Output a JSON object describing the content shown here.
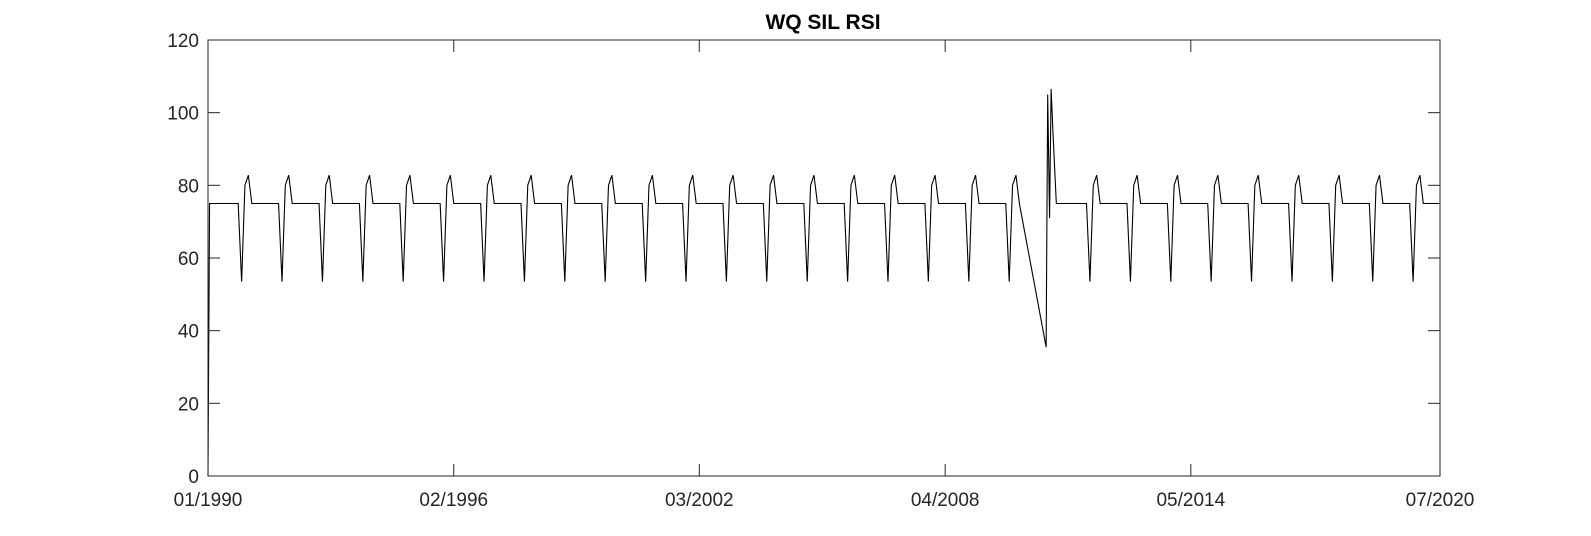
{
  "chart_data": {
    "type": "line",
    "title": "WQ SIL RSI",
    "xlabel": "",
    "ylabel": "",
    "x_axis": {
      "type": "date",
      "range": [
        "1990-01-01",
        "2020-07-01"
      ],
      "tick_dates": [
        "1990-01-01",
        "1996-02-01",
        "2002-03-01",
        "2008-04-01",
        "2014-05-01",
        "2020-07-01"
      ],
      "tick_labels": [
        "01/1990",
        "02/1996",
        "03/2002",
        "04/2008",
        "05/2014",
        "07/2020"
      ]
    },
    "y_axis": {
      "range": [
        0,
        120
      ],
      "ticks": [
        0,
        20,
        40,
        60,
        80,
        100,
        120
      ]
    },
    "grid": false,
    "line_color": "#000000",
    "series": [
      {
        "description_of_pattern": "annual cycle",
        "points": [
          [
            "1990-01-01",
            0
          ],
          [
            "1990-01-15",
            75
          ],
          [
            "1990-10-01",
            75
          ],
          [
            "1990-11-01",
            53.5
          ],
          [
            "1990-12-01",
            80
          ],
          [
            "1991-01-01",
            82.8
          ],
          [
            "1991-02-01",
            75
          ],
          [
            "1991-10-01",
            75
          ],
          [
            "1991-11-01",
            53.5
          ],
          [
            "1991-12-01",
            80
          ],
          [
            "1992-01-01",
            82.8
          ],
          [
            "1992-02-01",
            75
          ],
          [
            "1992-10-01",
            75
          ],
          [
            "1992-11-01",
            53.5
          ],
          [
            "1992-12-01",
            80
          ],
          [
            "1993-01-01",
            82.8
          ],
          [
            "1993-02-01",
            75
          ],
          [
            "1993-10-01",
            75
          ],
          [
            "1993-11-01",
            53.5
          ],
          [
            "1993-12-01",
            80
          ],
          [
            "1994-01-01",
            82.8
          ],
          [
            "1994-02-01",
            75
          ],
          [
            "1994-10-01",
            75
          ],
          [
            "1994-11-01",
            53.5
          ],
          [
            "1994-12-01",
            80
          ],
          [
            "1995-01-01",
            82.8
          ],
          [
            "1995-02-01",
            75
          ],
          [
            "1995-10-01",
            75
          ],
          [
            "1995-11-01",
            53.5
          ],
          [
            "1995-12-01",
            80
          ],
          [
            "1996-01-01",
            82.8
          ],
          [
            "1996-02-01",
            75
          ],
          [
            "1996-10-01",
            75
          ],
          [
            "1996-11-01",
            53.5
          ],
          [
            "1996-12-01",
            80
          ],
          [
            "1997-01-01",
            82.8
          ],
          [
            "1997-02-01",
            75
          ],
          [
            "1997-10-01",
            75
          ],
          [
            "1997-11-01",
            53.5
          ],
          [
            "1997-12-01",
            80
          ],
          [
            "1998-01-01",
            82.8
          ],
          [
            "1998-02-01",
            75
          ],
          [
            "1998-10-01",
            75
          ],
          [
            "1998-11-01",
            53.5
          ],
          [
            "1998-12-01",
            80
          ],
          [
            "1999-01-01",
            82.8
          ],
          [
            "1999-02-01",
            75
          ],
          [
            "1999-10-01",
            75
          ],
          [
            "1999-11-01",
            53.5
          ],
          [
            "1999-12-01",
            80
          ],
          [
            "2000-01-01",
            82.8
          ],
          [
            "2000-02-01",
            75
          ],
          [
            "2000-10-01",
            75
          ],
          [
            "2000-11-01",
            53.5
          ],
          [
            "2000-12-01",
            80
          ],
          [
            "2001-01-01",
            82.8
          ],
          [
            "2001-02-01",
            75
          ],
          [
            "2001-10-01",
            75
          ],
          [
            "2001-11-01",
            53.5
          ],
          [
            "2001-12-01",
            80
          ],
          [
            "2002-01-01",
            82.8
          ],
          [
            "2002-02-01",
            75
          ],
          [
            "2002-10-01",
            75
          ],
          [
            "2002-11-01",
            53.5
          ],
          [
            "2002-12-01",
            80
          ],
          [
            "2003-01-01",
            82.8
          ],
          [
            "2003-02-01",
            75
          ],
          [
            "2003-10-01",
            75
          ],
          [
            "2003-11-01",
            53.5
          ],
          [
            "2003-12-01",
            80
          ],
          [
            "2004-01-01",
            82.8
          ],
          [
            "2004-02-01",
            75
          ],
          [
            "2004-10-01",
            75
          ],
          [
            "2004-11-01",
            53.5
          ],
          [
            "2004-12-01",
            80
          ],
          [
            "2005-01-01",
            82.8
          ],
          [
            "2005-02-01",
            75
          ],
          [
            "2005-10-01",
            75
          ],
          [
            "2005-11-01",
            53.5
          ],
          [
            "2005-12-01",
            80
          ],
          [
            "2006-01-01",
            82.8
          ],
          [
            "2006-02-01",
            75
          ],
          [
            "2006-10-01",
            75
          ],
          [
            "2006-11-01",
            53.5
          ],
          [
            "2006-12-01",
            80
          ],
          [
            "2007-01-01",
            82.8
          ],
          [
            "2007-02-01",
            75
          ],
          [
            "2007-10-01",
            75
          ],
          [
            "2007-11-01",
            53.5
          ],
          [
            "2007-12-01",
            80
          ],
          [
            "2008-01-01",
            82.8
          ],
          [
            "2008-02-01",
            75
          ],
          [
            "2008-10-01",
            75
          ],
          [
            "2008-11-01",
            53.5
          ],
          [
            "2008-12-01",
            80
          ],
          [
            "2009-01-01",
            82.8
          ],
          [
            "2009-02-01",
            75
          ],
          [
            "2009-10-01",
            75
          ],
          [
            "2009-11-01",
            53.5
          ],
          [
            "2009-12-01",
            80
          ],
          [
            "2010-01-01",
            82.8
          ],
          [
            "2010-02-01",
            75
          ],
          [
            "2010-10-01",
            35.5
          ],
          [
            "2010-10-15",
            105
          ],
          [
            "2010-11-01",
            71
          ],
          [
            "2010-11-15",
            106.5
          ],
          [
            "2010-12-01",
            95
          ],
          [
            "2011-01-01",
            75
          ],
          [
            "2011-10-01",
            75
          ],
          [
            "2011-11-01",
            53.5
          ],
          [
            "2011-12-01",
            80
          ],
          [
            "2012-01-01",
            82.8
          ],
          [
            "2012-02-01",
            75
          ],
          [
            "2012-10-01",
            75
          ],
          [
            "2012-11-01",
            53.5
          ],
          [
            "2012-12-01",
            80
          ],
          [
            "2013-01-01",
            82.8
          ],
          [
            "2013-02-01",
            75
          ],
          [
            "2013-10-01",
            75
          ],
          [
            "2013-11-01",
            53.5
          ],
          [
            "2013-12-01",
            80
          ],
          [
            "2014-01-01",
            82.8
          ],
          [
            "2014-02-01",
            75
          ],
          [
            "2014-10-01",
            75
          ],
          [
            "2014-11-01",
            53.5
          ],
          [
            "2014-12-01",
            80
          ],
          [
            "2015-01-01",
            82.8
          ],
          [
            "2015-02-01",
            75
          ],
          [
            "2015-10-01",
            75
          ],
          [
            "2015-11-01",
            53.5
          ],
          [
            "2015-12-01",
            80
          ],
          [
            "2016-01-01",
            82.8
          ],
          [
            "2016-02-01",
            75
          ],
          [
            "2016-10-01",
            75
          ],
          [
            "2016-11-01",
            53.5
          ],
          [
            "2016-12-01",
            80
          ],
          [
            "2017-01-01",
            82.8
          ],
          [
            "2017-02-01",
            75
          ],
          [
            "2017-10-01",
            75
          ],
          [
            "2017-11-01",
            53.5
          ],
          [
            "2017-12-01",
            80
          ],
          [
            "2018-01-01",
            82.8
          ],
          [
            "2018-02-01",
            75
          ],
          [
            "2018-10-01",
            75
          ],
          [
            "2018-11-01",
            53.5
          ],
          [
            "2018-12-01",
            80
          ],
          [
            "2019-01-01",
            82.8
          ],
          [
            "2019-02-01",
            75
          ],
          [
            "2019-10-01",
            75
          ],
          [
            "2019-11-01",
            53.5
          ],
          [
            "2019-12-01",
            80
          ],
          [
            "2020-01-01",
            82.8
          ],
          [
            "2020-02-01",
            75
          ],
          [
            "2020-07-01",
            75
          ]
        ]
      }
    ]
  }
}
